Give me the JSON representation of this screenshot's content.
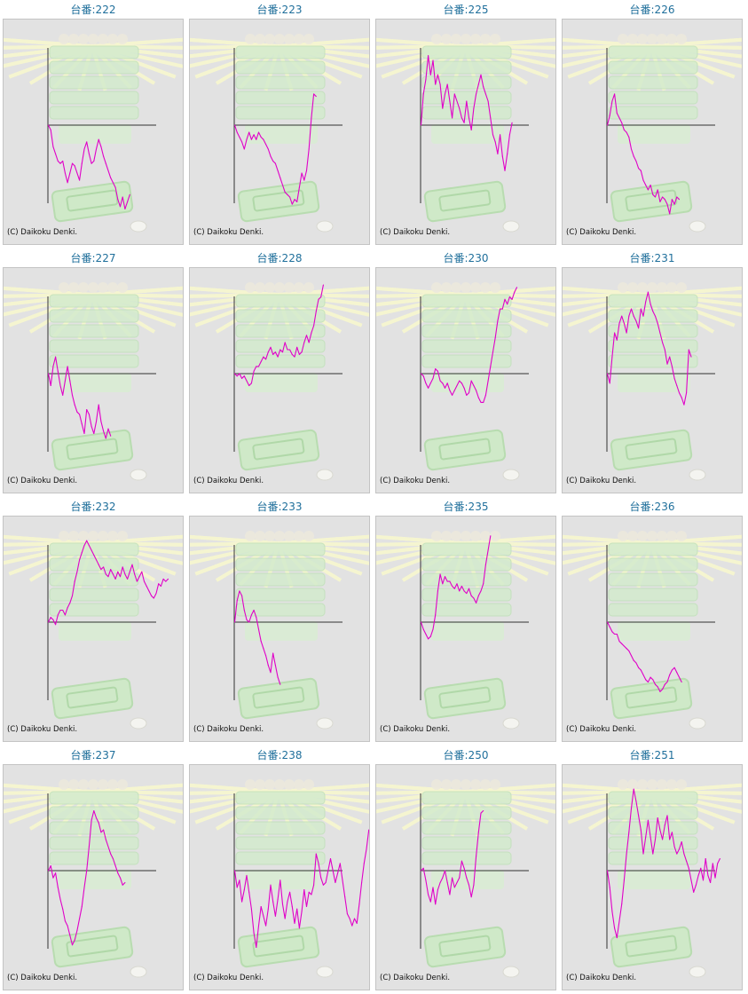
{
  "style": {
    "line_color": "#e000c8",
    "title_color": "#1f6f9b",
    "panel_bg": "#e2e2e2",
    "axis_color": "#333333"
  },
  "chart_data": [
    {
      "type": "line",
      "title": "台番:222",
      "copyright": "(C) Daikoku Denki.",
      "values": [
        0,
        -0.2,
        -0.9,
        -1.2,
        -1.5,
        -1.6,
        -1.5,
        -2.0,
        -2.4,
        -2.0,
        -1.6,
        -1.7,
        -2.0,
        -2.3,
        -1.6,
        -1.0,
        -0.7,
        -1.2,
        -1.6,
        -1.5,
        -1.0,
        -0.6,
        -0.9,
        -1.3,
        -1.6,
        -1.9,
        -2.2,
        -2.4,
        -2.6,
        -3.1,
        -3.4,
        -3.0,
        -3.5,
        -3.2,
        -2.9
      ]
    },
    {
      "type": "line",
      "title": "台番:223",
      "copyright": "(C) Daikoku Denki.",
      "values": [
        0,
        -0.3,
        -0.5,
        -0.7,
        -1.0,
        -0.6,
        -0.3,
        -0.6,
        -0.4,
        -0.6,
        -0.3,
        -0.5,
        -0.6,
        -0.8,
        -1.0,
        -1.3,
        -1.5,
        -1.6,
        -1.9,
        -2.2,
        -2.5,
        -2.8,
        -2.9,
        -3.0,
        -3.3,
        -3.1,
        -3.2,
        -2.6,
        -2.0,
        -2.3,
        -1.9,
        -1.0,
        0.3,
        1.3,
        1.2
      ]
    },
    {
      "type": "line",
      "title": "台番:225",
      "copyright": "(C) Daikoku Denki.",
      "values": [
        0,
        1.3,
        1.9,
        2.9,
        2.1,
        2.7,
        1.7,
        2.1,
        1.7,
        0.7,
        1.3,
        1.7,
        1.0,
        0.3,
        1.3,
        1.0,
        0.7,
        0.3,
        0.1,
        1.0,
        0.3,
        -0.2,
        0.7,
        1.3,
        1.7,
        2.1,
        1.6,
        1.3,
        1.0,
        0.3,
        -0.4,
        -0.7,
        -1.2,
        -0.4,
        -1.3,
        -1.9,
        -1.2,
        -0.4,
        0.1
      ]
    },
    {
      "type": "line",
      "title": "台番:226",
      "copyright": "(C) Daikoku Denki.",
      "values": [
        0,
        0.4,
        1.0,
        1.3,
        0.5,
        0.3,
        0.1,
        -0.2,
        -0.3,
        -0.5,
        -1.0,
        -1.3,
        -1.5,
        -1.8,
        -1.9,
        -2.3,
        -2.5,
        -2.7,
        -2.5,
        -2.9,
        -3.0,
        -2.7,
        -3.2,
        -3.0,
        -3.1,
        -3.3,
        -3.7,
        -3.1,
        -3.3,
        -3.0,
        -3.1
      ]
    },
    {
      "type": "line",
      "title": "台番:227",
      "copyright": "(C) Daikoku Denki.",
      "values": [
        0,
        -0.5,
        0.3,
        0.7,
        0.1,
        -0.5,
        -0.9,
        -0.3,
        0.3,
        -0.3,
        -0.9,
        -1.3,
        -1.6,
        -1.7,
        -2.1,
        -2.5,
        -1.5,
        -1.7,
        -2.2,
        -2.5,
        -2.0,
        -1.3,
        -2.0,
        -2.4,
        -2.7,
        -2.3,
        -2.6
      ]
    },
    {
      "type": "line",
      "title": "台番:228",
      "copyright": "(C) Daikoku Denki.",
      "values": [
        0,
        -0.1,
        0,
        -0.2,
        -0.1,
        -0.3,
        -0.5,
        -0.4,
        0.1,
        0.3,
        0.3,
        0.5,
        0.7,
        0.6,
        0.9,
        1.1,
        0.8,
        0.9,
        0.7,
        1.0,
        0.9,
        1.3,
        1.0,
        1.0,
        0.8,
        0.7,
        1.1,
        0.8,
        0.9,
        1.3,
        1.6,
        1.3,
        1.7,
        2.0,
        2.6,
        3.1,
        3.2,
        3.7
      ]
    },
    {
      "type": "line",
      "title": "台番:230",
      "copyright": "(C) Daikoku Denki.",
      "values": [
        0,
        -0.1,
        -0.4,
        -0.6,
        -0.4,
        -0.2,
        0.2,
        0.1,
        -0.3,
        -0.4,
        -0.6,
        -0.4,
        -0.7,
        -0.9,
        -0.7,
        -0.5,
        -0.3,
        -0.4,
        -0.6,
        -0.9,
        -0.8,
        -0.3,
        -0.5,
        -0.7,
        -1.0,
        -1.2,
        -1.2,
        -0.9,
        -0.3,
        0.3,
        0.9,
        1.5,
        2.2,
        2.7,
        2.7,
        3.1,
        2.9,
        3.2,
        3.1,
        3.4,
        3.6
      ]
    },
    {
      "type": "line",
      "title": "台番:231",
      "copyright": "(C) Daikoku Denki.",
      "values": [
        0,
        -0.4,
        0.7,
        1.7,
        1.4,
        2.1,
        2.4,
        2.1,
        1.7,
        2.4,
        2.7,
        2.4,
        2.2,
        1.9,
        2.7,
        2.4,
        3.0,
        3.4,
        2.9,
        2.6,
        2.4,
        2.1,
        1.7,
        1.3,
        1.0,
        0.4,
        0.7,
        0.3,
        -0.2,
        -0.5,
        -0.8,
        -1.0,
        -1.3,
        -0.8,
        1.0,
        0.7
      ]
    },
    {
      "type": "line",
      "title": "台番:232",
      "copyright": "(C) Daikoku Denki.",
      "values": [
        0,
        0.2,
        0.1,
        -0.1,
        0.3,
        0.5,
        0.5,
        0.3,
        0.6,
        0.8,
        1.1,
        1.7,
        2.1,
        2.6,
        2.9,
        3.2,
        3.4,
        3.2,
        3.0,
        2.8,
        2.6,
        2.4,
        2.2,
        2.3,
        2.0,
        1.9,
        2.2,
        2.0,
        1.8,
        2.1,
        1.9,
        2.3,
        2.0,
        1.8,
        2.1,
        2.4,
        2.0,
        1.7,
        1.9,
        2.1,
        1.7,
        1.5,
        1.3,
        1.1,
        1.0,
        1.2,
        1.6,
        1.5,
        1.8,
        1.7,
        1.8
      ]
    },
    {
      "type": "line",
      "title": "台番:233",
      "copyright": "(C) Daikoku Denki.",
      "values": [
        0,
        0.9,
        1.3,
        1.1,
        0.5,
        0.1,
        0,
        0.3,
        0.5,
        0.2,
        -0.3,
        -0.8,
        -1.1,
        -1.4,
        -1.8,
        -2.1,
        -1.3,
        -1.8,
        -2.3,
        -2.6
      ]
    },
    {
      "type": "line",
      "title": "台番:235",
      "copyright": "(C) Daikoku Denki.",
      "values": [
        0,
        -0.3,
        -0.5,
        -0.7,
        -0.6,
        -0.3,
        0.3,
        1.3,
        2.0,
        1.6,
        1.9,
        1.7,
        1.7,
        1.5,
        1.4,
        1.6,
        1.3,
        1.5,
        1.3,
        1.2,
        1.4,
        1.1,
        1.0,
        0.8,
        1.1,
        1.3,
        1.6,
        2.4,
        3.0,
        3.6
      ]
    },
    {
      "type": "line",
      "title": "台番:236",
      "copyright": "(C) Daikoku Denki.",
      "values": [
        0,
        -0.2,
        -0.4,
        -0.5,
        -0.5,
        -0.8,
        -0.9,
        -1.0,
        -1.1,
        -1.2,
        -1.4,
        -1.6,
        -1.7,
        -1.9,
        -2.0,
        -2.2,
        -2.4,
        -2.5,
        -2.3,
        -2.4,
        -2.6,
        -2.7,
        -2.9,
        -2.8,
        -2.6,
        -2.5,
        -2.2,
        -2.0,
        -1.9,
        -2.1,
        -2.3,
        -2.5
      ]
    },
    {
      "type": "line",
      "title": "台番:237",
      "copyright": "(C) Daikoku Denki.",
      "values": [
        0,
        0.2,
        -0.3,
        -0.1,
        -0.7,
        -1.2,
        -1.6,
        -2.1,
        -2.3,
        -2.7,
        -3.1,
        -2.9,
        -2.5,
        -2.0,
        -1.5,
        -0.7,
        0,
        1.0,
        2.1,
        2.5,
        2.2,
        2.0,
        1.6,
        1.7,
        1.3,
        1.0,
        0.7,
        0.5,
        0.2,
        -0.1,
        -0.3,
        -0.6,
        -0.5
      ]
    },
    {
      "type": "line",
      "title": "台番:238",
      "copyright": "(C) Daikoku Denki.",
      "values": [
        0,
        -0.7,
        -0.4,
        -1.3,
        -0.8,
        -0.2,
        -0.9,
        -1.6,
        -2.6,
        -3.2,
        -2.3,
        -1.5,
        -1.9,
        -2.3,
        -1.6,
        -0.6,
        -1.3,
        -1.9,
        -1.2,
        -0.4,
        -1.4,
        -2.0,
        -1.3,
        -0.9,
        -1.5,
        -2.2,
        -1.6,
        -2.4,
        -1.7,
        -0.8,
        -1.5,
        -0.9,
        -1.0,
        -0.6,
        0.7,
        0.3,
        -0.3,
        -0.6,
        -0.5,
        0,
        0.5,
        0,
        -0.5,
        -0.1,
        0.3,
        -0.4,
        -1.1,
        -1.8,
        -2.0,
        -2.3,
        -2.0,
        -2.2,
        -1.4,
        -0.5,
        0.3,
        0.9,
        1.7
      ]
    },
    {
      "type": "line",
      "title": "台番:250",
      "copyright": "(C) Daikoku Denki.",
      "values": [
        0,
        0.1,
        -0.4,
        -1.0,
        -1.3,
        -0.7,
        -1.4,
        -0.8,
        -0.5,
        -0.3,
        0,
        -0.5,
        -1.0,
        -0.3,
        -0.7,
        -0.5,
        -0.3,
        0.4,
        0.1,
        -0.3,
        -0.6,
        -1.1,
        -0.6,
        0.6,
        1.6,
        2.4,
        2.5
      ]
    },
    {
      "type": "line",
      "title": "台番:251",
      "copyright": "(C) Daikoku Denki.",
      "values": [
        0,
        -0.7,
        -1.7,
        -2.4,
        -2.8,
        -2.1,
        -1.4,
        -0.4,
        0.7,
        1.6,
        2.6,
        3.4,
        2.9,
        2.3,
        1.7,
        0.7,
        1.4,
        2.1,
        1.4,
        0.7,
        1.3,
        2.2,
        1.7,
        1.3,
        1.9,
        2.3,
        1.3,
        1.6,
        1.0,
        0.7,
        0.9,
        1.2,
        0.7,
        0.4,
        0.1,
        -0.4,
        -0.9,
        -0.6,
        -0.2,
        0.1,
        -0.4,
        0.5,
        -0.2,
        -0.5,
        0.3,
        -0.3,
        0.3,
        0.5
      ]
    }
  ]
}
